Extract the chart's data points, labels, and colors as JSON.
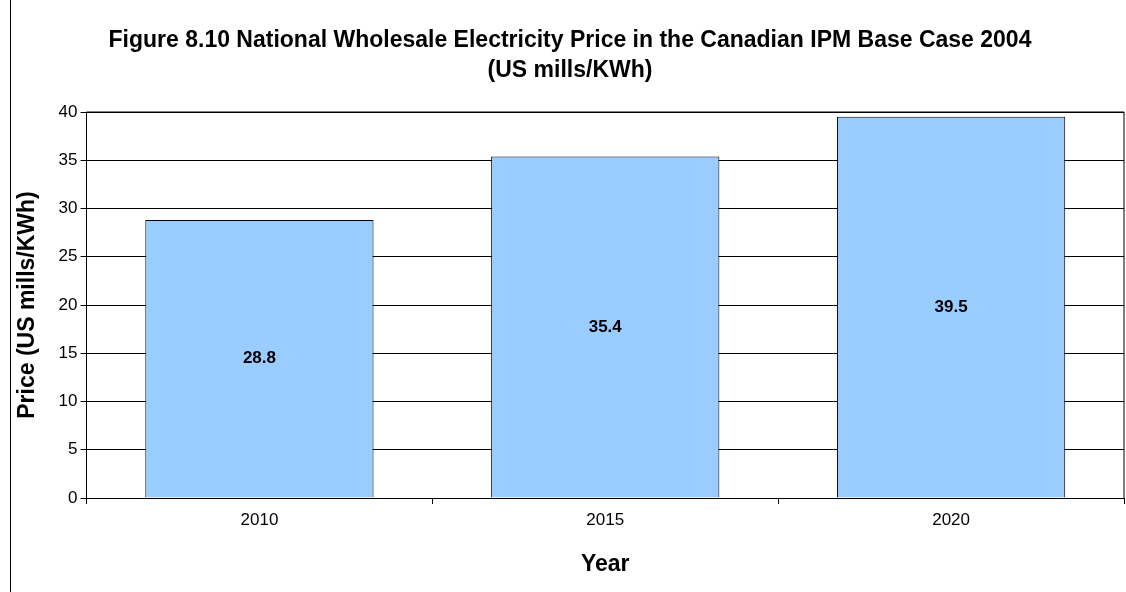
{
  "chart_data": {
    "type": "bar",
    "title": "Figure 8.10 National Wholesale Electricity Price in the Canadian IPM Base Case 2004 (US mills/KWh)",
    "xlabel": "Year",
    "ylabel": "Price (US mills/KWh)",
    "categories": [
      "2010",
      "2015",
      "2020"
    ],
    "series": [
      {
        "color": "#99ccff",
        "values": [
          28.8,
          35.4,
          39.5
        ]
      }
    ],
    "ylim": [
      0,
      40
    ],
    "yticks": [
      0,
      5,
      10,
      15,
      20,
      25,
      30,
      35,
      40
    ],
    "grid": "y",
    "data_labels": true
  }
}
